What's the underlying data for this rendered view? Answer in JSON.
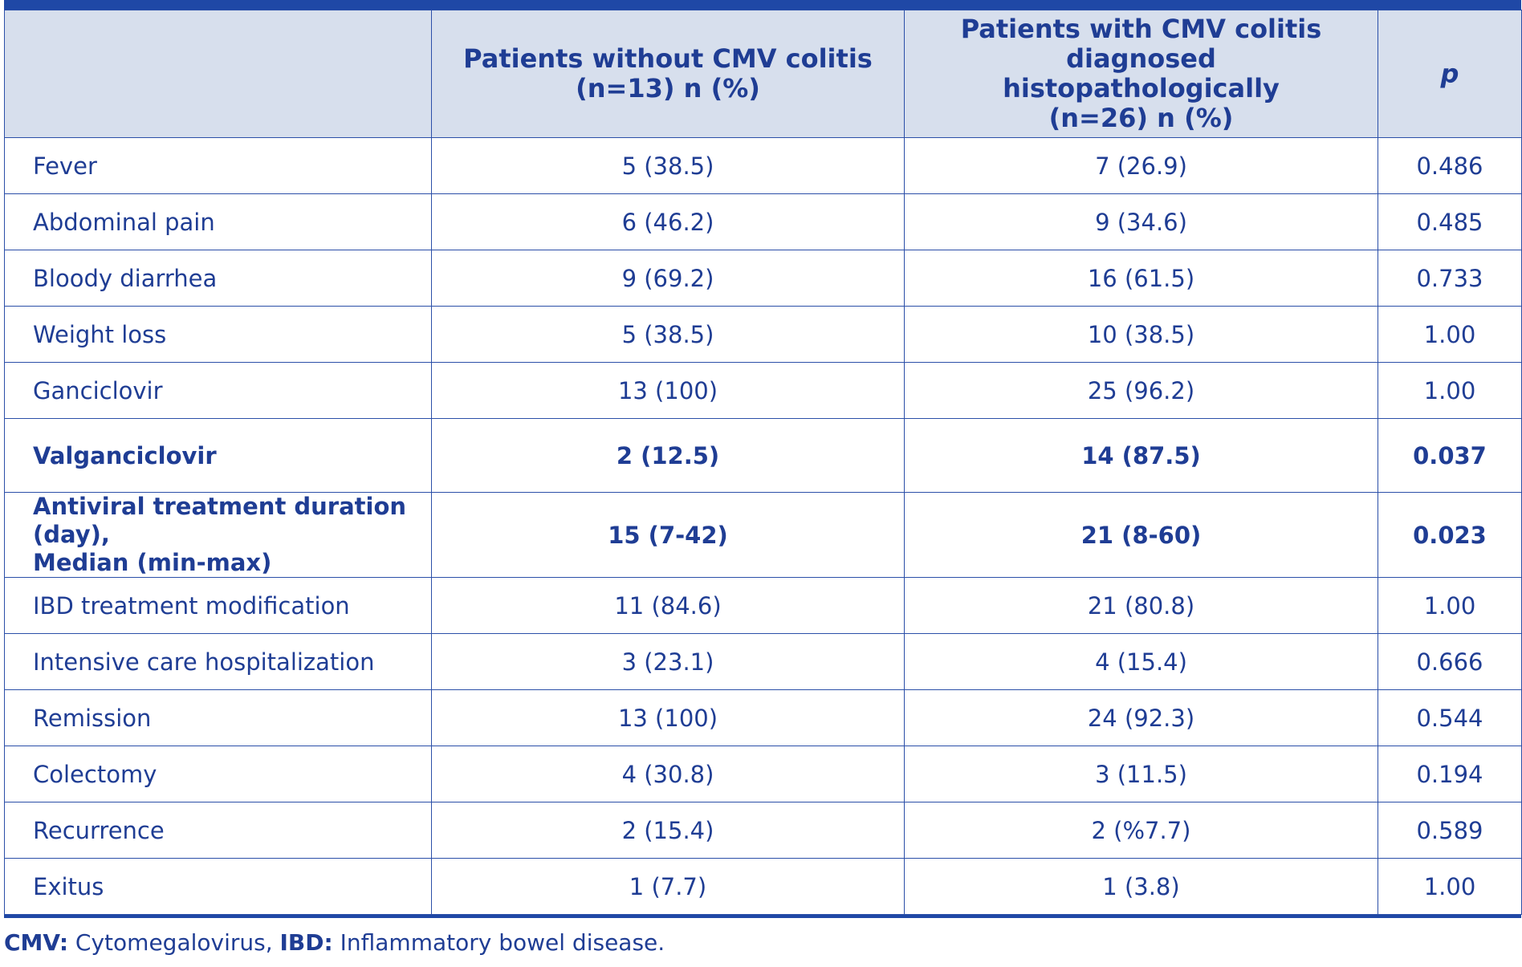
{
  "header": {
    "col1": "",
    "col2_line1": "Patients without CMV colitis",
    "col2_line2": "(n=13) n (%)",
    "col3_line1": "Patients with CMV colitis diagnosed",
    "col3_line2": "histopathologically",
    "col3_line3": "(n=26) n (%)",
    "col4": "p"
  },
  "rows": [
    {
      "label": "Fever",
      "without": "5 (38.5)",
      "with": "7 (26.9)",
      "p": "0.486"
    },
    {
      "label": "Abdominal pain",
      "without": "6 (46.2)",
      "with": "9 (34.6)",
      "p": "0.485"
    },
    {
      "label": "Bloody diarrhea",
      "without": "9 (69.2)",
      "with": "16 (61.5)",
      "p": "0.733"
    },
    {
      "label": "Weight loss",
      "without": "5 (38.5)",
      "with": "10 (38.5)",
      "p": "1.00"
    },
    {
      "label": "Ganciclovir",
      "without": "13 (100)",
      "with": "25 (96.2)",
      "p": "1.00"
    },
    {
      "label": "Valganciclovir",
      "without": "2 (12.5)",
      "with": "14 (87.5)",
      "p": "0.037"
    },
    {
      "label_line1": "Antiviral treatment duration (day),",
      "label_line2": "Median (min-max)",
      "without": "15 (7-42)",
      "with": "21 (8-60)",
      "p": "0.023"
    },
    {
      "label": "IBD treatment modification",
      "without": "11 (84.6)",
      "with": "21 (80.8)",
      "p": "1.00"
    },
    {
      "label": "Intensive care hospitalization",
      "without": "3 (23.1)",
      "with": "4 (15.4)",
      "p": "0.666"
    },
    {
      "label": "Remission",
      "without": "13 (100)",
      "with": "24 (92.3)",
      "p": "0.544"
    },
    {
      "label": "Colectomy",
      "without": "4 (30.8)",
      "with": "3 (11.5)",
      "p": "0.194"
    },
    {
      "label": "Recurrence",
      "without": "2 (15.4)",
      "with": "2 (%7.7)",
      "p": "0.589"
    },
    {
      "label": "Exitus",
      "without": "1 (7.7)",
      "with": "1 (3.8)",
      "p": "1.00"
    }
  ],
  "footnote": {
    "abbr1": "CMV:",
    "def1": " Cytomegalovirus, ",
    "abbr2": "IBD:",
    "def2": " Inflammatory bowel disease."
  }
}
